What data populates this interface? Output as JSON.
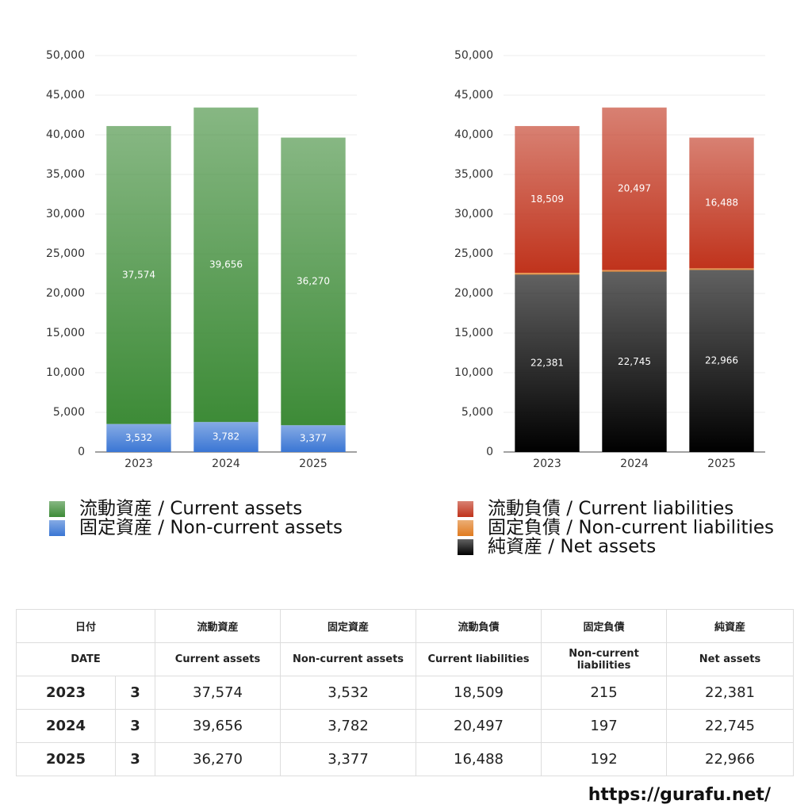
{
  "chart_data": [
    {
      "type": "bar",
      "stacked": true,
      "categories": [
        "2023",
        "2024",
        "2025"
      ],
      "series": [
        {
          "name": "流動資産 / Current assets",
          "color": "#3d8b37",
          "values": [
            37574,
            39656,
            36270
          ],
          "value_labels": [
            "37,574",
            "39,656",
            "36,270"
          ]
        },
        {
          "name": "固定資産 / Non-current assets",
          "color": "#3a76d4",
          "values": [
            3532,
            3782,
            3377
          ],
          "value_labels": [
            "3,532",
            "3,782",
            "3,377"
          ]
        }
      ],
      "ylim": [
        0,
        50000
      ],
      "yticks": [
        0,
        {
          "value": 5000,
          "label": "5,000"
        },
        {
          "value": 10000,
          "label": "10,000"
        },
        {
          "value": 15000,
          "label": "15,000"
        },
        {
          "value": 20000,
          "label": "20,000"
        },
        {
          "value": 25000,
          "label": "25,000"
        },
        {
          "value": 30000,
          "label": "30,000"
        },
        {
          "value": 35000,
          "label": "35,000"
        },
        {
          "value": 40000,
          "label": "40,000"
        },
        {
          "value": 45000,
          "label": "45,000"
        },
        {
          "value": 50000,
          "label": "50,000"
        }
      ],
      "grid": true
    },
    {
      "type": "bar",
      "stacked": true,
      "categories": [
        "2023",
        "2024",
        "2025"
      ],
      "series": [
        {
          "name": "流動負債 / Current liabilities",
          "color": "#c0331c",
          "values": [
            18509,
            20497,
            16488
          ],
          "value_labels": [
            "18,509",
            "20,497",
            "16,488"
          ]
        },
        {
          "name": "固定負債 / Non-current liabilities",
          "color": "#e07b20",
          "values": [
            215,
            197,
            192
          ]
        },
        {
          "name": "純資産 / Net assets",
          "color": "#000000",
          "values": [
            22381,
            22745,
            22966
          ],
          "value_labels": [
            "22,381",
            "22,745",
            "22,966"
          ]
        }
      ],
      "ylim": [
        0,
        50000
      ],
      "yticks": [
        0,
        {
          "value": 5000,
          "label": "5,000"
        },
        {
          "value": 10000,
          "label": "10,000"
        },
        {
          "value": 15000,
          "label": "15,000"
        },
        {
          "value": 20000,
          "label": "20,000"
        },
        {
          "value": 25000,
          "label": "25,000"
        },
        {
          "value": 30000,
          "label": "30,000"
        },
        {
          "value": 35000,
          "label": "35,000"
        },
        {
          "value": 40000,
          "label": "40,000"
        },
        {
          "value": 45000,
          "label": "45,000"
        },
        {
          "value": 50000,
          "label": "50,000"
        }
      ],
      "grid": true
    }
  ],
  "table": {
    "headers": [
      "日付",
      "流動資産",
      "固定資産",
      "流動負債",
      "固定負債",
      "純資産"
    ],
    "subheaders": [
      "DATE",
      "Current assets",
      "Non-current assets",
      "Current liabilities",
      "Non-current liabilities",
      "Net assets"
    ],
    "rows": [
      [
        "2023",
        "3",
        "37,574",
        "3,532",
        "18,509",
        "215",
        "22,381"
      ],
      [
        "2024",
        "3",
        "39,656",
        "3,782",
        "20,497",
        "197",
        "22,745"
      ],
      [
        "2025",
        "3",
        "36,270",
        "3,377",
        "16,488",
        "192",
        "22,966"
      ]
    ]
  },
  "footer": "https://gurafu.net/"
}
